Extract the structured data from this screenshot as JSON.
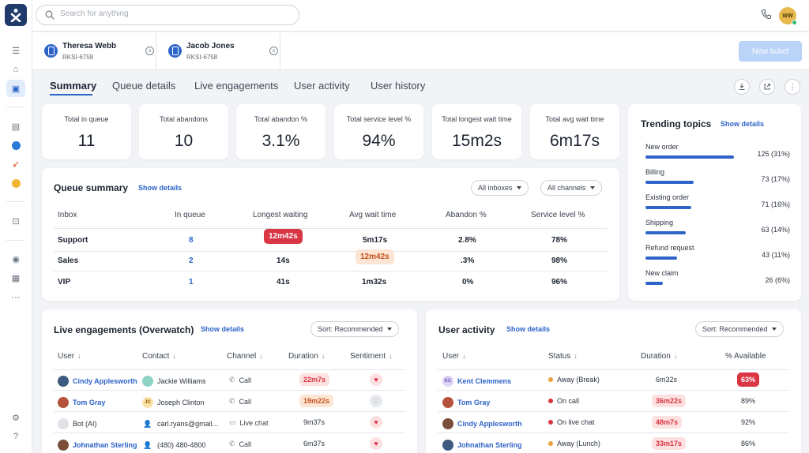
{
  "colors": {
    "accent": "#2e63c8",
    "danger": "#d93543",
    "warning": "#e8a33c",
    "ok": "#2eb872"
  },
  "search": {
    "placeholder": "Search for anything"
  },
  "user": {
    "initials": "WW"
  },
  "customer_tabs": [
    {
      "name": "Theresa Webb",
      "id": "RKSI-6758"
    },
    {
      "name": "Jacob Jones",
      "id": "RKSI-6758"
    }
  ],
  "new_ticket_label": "New ticket",
  "nav_tabs": [
    "Summary",
    "Queue details",
    "Live engagements",
    "User activity",
    "User history"
  ],
  "stats": [
    {
      "label": "Total in queue",
      "value": "11"
    },
    {
      "label": "Total abandons",
      "value": "10"
    },
    {
      "label": "Total abandon %",
      "value": "3.1%"
    },
    {
      "label": "Total service level %",
      "value": "94%"
    },
    {
      "label": "Total longest wait time",
      "value": "15m2s"
    },
    {
      "label": "Total avg wait time",
      "value": "6m17s"
    }
  ],
  "queue_summary": {
    "title": "Queue summary",
    "show_details": "Show details",
    "filters": [
      "All inboxes",
      "All channels"
    ],
    "columns": [
      "Inbox",
      "In queue",
      "Longest waiting",
      "Avg wait time",
      "Abandon %",
      "Service level %"
    ],
    "rows": [
      [
        "Support",
        "8",
        "12m42s",
        "5m17s",
        "2.8%",
        "78%"
      ],
      [
        "Sales",
        "2",
        "14s",
        "12m42s",
        ".3%",
        "98%"
      ],
      [
        "VIP",
        "1",
        "41s",
        "1m32s",
        "0%",
        "96%"
      ]
    ]
  },
  "trending": {
    "title": "Trending topics",
    "show_details": "Show details",
    "items": [
      {
        "name": "New order",
        "value": "125 (31%)",
        "pct": 31
      },
      {
        "name": "Billing",
        "value": "73 (17%)",
        "pct": 17
      },
      {
        "name": "Existing order",
        "value": "71 (16%)",
        "pct": 16
      },
      {
        "name": "Shipping",
        "value": "63 (14%)",
        "pct": 14
      },
      {
        "name": "Refund request",
        "value": "43 (11%)",
        "pct": 11
      },
      {
        "name": "New claim",
        "value": "26 (6%)",
        "pct": 6
      }
    ]
  },
  "live": {
    "title": "Live engagements (Overwatch)",
    "show_details": "Show details",
    "sort": "Sort: Recommended",
    "columns": [
      "User",
      "Contact",
      "Channel",
      "Duration",
      "Sentiment"
    ],
    "rows": [
      {
        "user": "Cindy Applesworth",
        "user_display": "Cindy Applesworth",
        "contact": "Jackie Williams",
        "channel": "Call",
        "duration": "22m7s",
        "sentiment": "negative"
      },
      {
        "user": "Tom Gray",
        "user_display": "Tom Gray",
        "contact": "Joseph Clinton",
        "channel": "Call",
        "duration": "19m22s",
        "sentiment": "neutral"
      },
      {
        "user": "Bot (AI)",
        "user_display": "Bot (AI)",
        "contact": "carl.ryans@gmail...",
        "channel": "Live chat",
        "duration": "9m37s",
        "sentiment": "negative"
      },
      {
        "user": "Johnathan Sterling",
        "user_display": "Johnathan Sterling",
        "contact": "(480) 480-4800",
        "channel": "Call",
        "duration": "6m37s",
        "sentiment": "negative"
      }
    ]
  },
  "activity": {
    "title": "User activity",
    "show_details": "Show details",
    "sort": "Sort: Recommended",
    "columns": [
      "User",
      "Status",
      "Duration",
      "% Available"
    ],
    "rows": [
      {
        "user": "Kent Clemmens",
        "status": "Away (Break)",
        "status_color": "#e8a33c",
        "duration": "6m32s",
        "available": "63%"
      },
      {
        "user": "Tom Gray",
        "status": "On call",
        "status_color": "#d93543",
        "duration": "36m22s",
        "available": "89%"
      },
      {
        "user": "Cindy Applesworth",
        "status": "On live chat",
        "status_color": "#d93543",
        "duration": "48m7s",
        "available": "92%"
      },
      {
        "user": "Johnathan Sterling",
        "status": "Away (Lunch)",
        "status_color": "#e8a33c",
        "duration": "33m17s",
        "available": "86%"
      }
    ]
  }
}
